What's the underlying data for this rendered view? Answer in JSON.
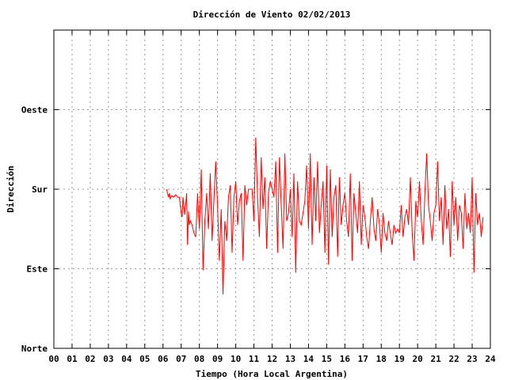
{
  "chart_data": {
    "type": "line",
    "title": "Dirección de Viento 02/02/2013",
    "xlabel": "Tiempo (Hora Local Argentina)",
    "ylabel": "Dirección",
    "xlim": [
      0,
      24
    ],
    "ylim": [
      0,
      4
    ],
    "x_ticks": [
      "00",
      "01",
      "02",
      "03",
      "04",
      "05",
      "06",
      "07",
      "08",
      "09",
      "10",
      "11",
      "12",
      "13",
      "14",
      "15",
      "16",
      "17",
      "18",
      "19",
      "20",
      "21",
      "22",
      "23",
      "24"
    ],
    "y_ticks": [
      {
        "value": 0,
        "label": "Norte"
      },
      {
        "value": 1,
        "label": "Este"
      },
      {
        "value": 2,
        "label": "Sur"
      },
      {
        "value": 3,
        "label": "Oeste"
      }
    ],
    "grid": true,
    "series_color": "#ff0000",
    "series": [
      {
        "x": [
          6.2,
          6.3,
          6.35,
          6.4,
          6.5,
          6.6,
          6.7,
          6.8,
          6.9,
          7.0,
          7.05,
          7.1,
          7.2,
          7.3,
          7.35,
          7.4,
          7.45,
          7.5,
          7.6,
          7.7,
          7.8,
          7.9,
          8.0,
          8.1,
          8.2,
          8.3,
          8.4,
          8.5,
          8.6,
          8.7,
          8.8,
          8.9,
          9.0,
          9.1,
          9.2,
          9.3,
          9.4,
          9.5,
          9.6,
          9.7,
          9.8,
          9.9,
          10.0,
          10.1,
          10.2,
          10.3,
          10.4,
          10.5,
          10.6,
          10.7,
          10.8,
          10.9,
          11.0,
          11.1,
          11.2,
          11.3,
          11.4,
          11.5,
          11.6,
          11.7,
          11.8,
          11.9,
          12.0,
          12.1,
          12.2,
          12.3,
          12.4,
          12.5,
          12.6,
          12.7,
          12.8,
          12.9,
          13.0,
          13.1,
          13.2,
          13.3,
          13.4,
          13.5,
          13.6,
          13.7,
          13.8,
          13.9,
          14.0,
          14.1,
          14.2,
          14.3,
          14.4,
          14.5,
          14.6,
          14.7,
          14.8,
          14.9,
          15.0,
          15.1,
          15.2,
          15.3,
          15.4,
          15.5,
          15.6,
          15.7,
          15.8,
          15.9,
          16.0,
          16.1,
          16.2,
          16.3,
          16.4,
          16.5,
          16.6,
          16.7,
          16.8,
          16.9,
          17.0,
          17.1,
          17.2,
          17.3,
          17.4,
          17.5,
          17.6,
          17.7,
          17.8,
          17.9,
          18.0,
          18.1,
          18.2,
          18.3,
          18.4,
          18.5,
          18.6,
          18.7,
          18.8,
          18.9,
          19.0,
          19.1,
          19.2,
          19.3,
          19.4,
          19.5,
          19.6,
          19.7,
          19.8,
          19.9,
          20.0,
          20.1,
          20.2,
          20.3,
          20.4,
          20.5,
          20.6,
          20.7,
          20.8,
          20.9,
          21.0,
          21.1,
          21.2,
          21.3,
          21.4,
          21.5,
          21.6,
          21.7,
          21.8,
          21.9,
          22.0,
          22.1,
          22.2,
          22.3,
          22.4,
          22.5,
          22.6,
          22.7,
          22.8,
          22.9,
          23.0,
          23.1,
          23.2,
          23.3,
          23.4,
          23.5,
          23.6
        ],
        "y": [
          2.0,
          1.9,
          1.95,
          1.88,
          1.92,
          1.9,
          1.93,
          1.9,
          1.9,
          1.7,
          1.65,
          1.9,
          1.68,
          1.95,
          1.3,
          1.72,
          1.55,
          1.6,
          1.55,
          1.45,
          1.4,
          1.95,
          1.5,
          2.25,
          0.98,
          1.6,
          1.95,
          1.5,
          2.2,
          1.35,
          1.85,
          2.35,
          1.8,
          1.1,
          1.75,
          0.68,
          1.6,
          1.35,
          1.9,
          2.05,
          1.2,
          1.9,
          2.1,
          1.55,
          1.85,
          1.95,
          1.1,
          2.05,
          1.8,
          2.0,
          2.0,
          2.0,
          1.6,
          2.65,
          1.9,
          1.4,
          2.4,
          1.75,
          2.15,
          1.25,
          1.95,
          2.1,
          2.0,
          1.9,
          2.35,
          1.2,
          2.4,
          1.8,
          1.25,
          2.45,
          1.6,
          1.7,
          2.0,
          1.4,
          2.2,
          0.95,
          2.1,
          1.6,
          1.55,
          1.7,
          1.85,
          2.3,
          1.5,
          2.45,
          1.3,
          2.15,
          1.6,
          2.35,
          1.45,
          1.8,
          2.1,
          1.2,
          2.3,
          1.05,
          2.25,
          1.4,
          1.9,
          2.05,
          1.15,
          2.15,
          1.55,
          1.8,
          1.95,
          1.6,
          1.4,
          2.2,
          1.1,
          1.95,
          1.7,
          1.45,
          2.1,
          1.3,
          1.8,
          1.65,
          1.4,
          1.25,
          1.6,
          1.9,
          1.5,
          1.35,
          1.75,
          1.55,
          1.2,
          1.7,
          1.45,
          1.35,
          1.6,
          1.45,
          1.3,
          1.55,
          1.45,
          1.5,
          1.45,
          1.8,
          1.4,
          1.65,
          1.75,
          1.55,
          2.15,
          1.45,
          1.1,
          1.85,
          1.65,
          2.1,
          1.6,
          1.3,
          1.95,
          2.45,
          1.8,
          1.6,
          1.35,
          1.7,
          1.8,
          2.35,
          1.6,
          1.9,
          1.3,
          2.05,
          1.5,
          1.75,
          1.15,
          2.1,
          1.55,
          1.9,
          1.35,
          1.8,
          1.7,
          1.25,
          1.95,
          1.5,
          1.7,
          1.45,
          2.15,
          0.95,
          1.95,
          1.55,
          1.7,
          1.4,
          1.65
        ]
      }
    ]
  }
}
